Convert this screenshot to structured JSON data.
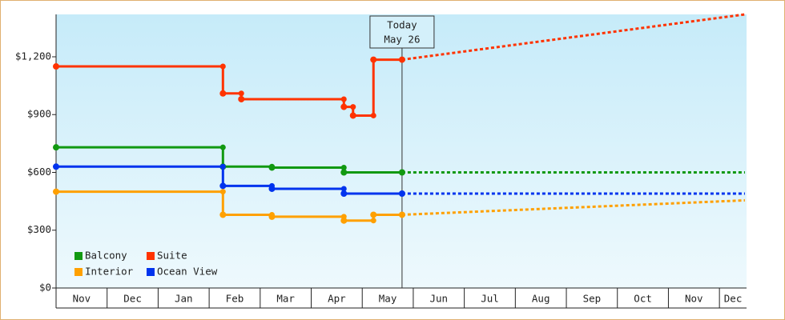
{
  "chart_data": {
    "type": "step-line",
    "xlim": [
      0,
      13.5
    ],
    "ylim": [
      0,
      1420
    ],
    "xticks": [
      {
        "value": 0,
        "label": "Nov"
      },
      {
        "value": 1,
        "label": "Dec"
      },
      {
        "value": 2,
        "label": "Jan"
      },
      {
        "value": 3,
        "label": "Feb"
      },
      {
        "value": 4,
        "label": "Mar"
      },
      {
        "value": 5,
        "label": "Apr"
      },
      {
        "value": 6,
        "label": "May"
      },
      {
        "value": 7,
        "label": "Jun"
      },
      {
        "value": 8,
        "label": "Jul"
      },
      {
        "value": 9,
        "label": "Aug"
      },
      {
        "value": 10,
        "label": "Sep"
      },
      {
        "value": 11,
        "label": "Oct"
      },
      {
        "value": 12,
        "label": "Nov"
      },
      {
        "value": 13,
        "label": "Dec"
      }
    ],
    "yticks": [
      {
        "value": 0,
        "label": "$0"
      },
      {
        "value": 300,
        "label": "$300"
      },
      {
        "value": 600,
        "label": "$600"
      },
      {
        "value": 900,
        "label": "$900"
      },
      {
        "value": 1200,
        "label": "$1,200"
      }
    ],
    "annotation": {
      "x": 6.78,
      "lines": [
        "Today",
        "May 26"
      ]
    },
    "forecast_x": [
      6.78,
      13.5
    ],
    "series": [
      {
        "name": "Balcony",
        "color": "#119911",
        "x": [
          0,
          3.27,
          4.23,
          5.64,
          6.78
        ],
        "values": [
          730,
          630,
          625,
          600,
          600
        ],
        "forecast": [
          600,
          600
        ]
      },
      {
        "name": "Suite",
        "color": "#ff3300",
        "x": [
          0,
          3.27,
          3.63,
          5.64,
          5.82,
          6.22,
          6.78
        ],
        "values": [
          1150,
          1010,
          980,
          940,
          895,
          1185,
          1185
        ],
        "forecast": [
          1185,
          1420
        ]
      },
      {
        "name": "Interior",
        "color": "#ffa000",
        "x": [
          0,
          3.27,
          4.23,
          5.64,
          6.22,
          6.78
        ],
        "values": [
          500,
          380,
          370,
          350,
          380,
          380
        ],
        "forecast": [
          380,
          455
        ]
      },
      {
        "name": "Ocean View",
        "color": "#0033ee",
        "x": [
          0,
          3.27,
          4.23,
          5.64,
          6.78
        ],
        "values": [
          630,
          530,
          515,
          490,
          490
        ],
        "forecast": [
          490,
          490
        ]
      }
    ]
  }
}
